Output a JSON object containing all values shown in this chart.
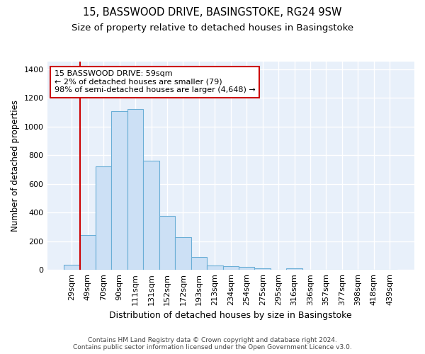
{
  "title1": "15, BASSWOOD DRIVE, BASINGSTOKE, RG24 9SW",
  "title2": "Size of property relative to detached houses in Basingstoke",
  "xlabel": "Distribution of detached houses by size in Basingstoke",
  "ylabel": "Number of detached properties",
  "categories": [
    "29sqm",
    "49sqm",
    "70sqm",
    "90sqm",
    "111sqm",
    "131sqm",
    "152sqm",
    "172sqm",
    "193sqm",
    "213sqm",
    "234sqm",
    "254sqm",
    "275sqm",
    "295sqm",
    "316sqm",
    "336sqm",
    "357sqm",
    "377sqm",
    "398sqm",
    "418sqm",
    "439sqm"
  ],
  "values": [
    35,
    242,
    720,
    1105,
    1120,
    760,
    375,
    228,
    90,
    33,
    28,
    22,
    13,
    0,
    13,
    0,
    0,
    0,
    0,
    0,
    0
  ],
  "bar_color": "#cce0f5",
  "bar_edge_color": "#6aaed6",
  "vline_color": "#cc0000",
  "annotation_text": "15 BASSWOOD DRIVE: 59sqm\n← 2% of detached houses are smaller (79)\n98% of semi-detached houses are larger (4,648) →",
  "annotation_box_color": "#ffffff",
  "annotation_box_edge": "#cc0000",
  "ylim": [
    0,
    1450
  ],
  "yticks": [
    0,
    200,
    400,
    600,
    800,
    1000,
    1200,
    1400
  ],
  "footer": "Contains HM Land Registry data © Crown copyright and database right 2024.\nContains public sector information licensed under the Open Government Licence v3.0.",
  "bg_color": "#ffffff",
  "plot_bg_color": "#e8f0fa",
  "grid_color": "#ffffff",
  "title1_fontsize": 10.5,
  "title2_fontsize": 9.5,
  "xlabel_fontsize": 9,
  "ylabel_fontsize": 8.5,
  "tick_fontsize": 8,
  "footer_fontsize": 6.5,
  "annot_fontsize": 8
}
